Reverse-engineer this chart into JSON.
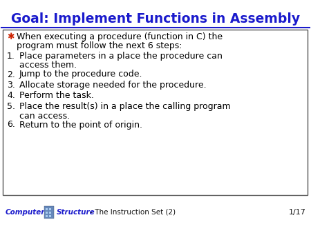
{
  "title": "Goal: Implement Functions in Assembly",
  "title_color": "#1a1acc",
  "title_fontsize": 13.5,
  "bg_color": "#ffffff",
  "box_bg": "#ffffff",
  "bullet_color": "#cc2200",
  "text_color": "#000000",
  "footer_computer": "Computer",
  "footer_structure": "Structure",
  "footer_rest": " - The Instruction Set (2)",
  "footer_color": "#1a1acc",
  "slide_number": "1/17",
  "item_fontsize": 9.0,
  "bullet_fontsize": 9.0,
  "bullet_line1": "When executing a procedure (function in C) the",
  "bullet_line2": "program must follow the next 6 steps:",
  "items": [
    {
      "num": "1.",
      "line1": "Place parameters in a place the procedure can",
      "line2": "access them."
    },
    {
      "num": "2.",
      "line1": "Jump to the procedure code.",
      "line2": null
    },
    {
      "num": "3.",
      "line1": "Allocate storage needed for the procedure.",
      "line2": null
    },
    {
      "num": "4.",
      "line1": "Perform the task.",
      "line2": null
    },
    {
      "num": "5.",
      "line1": "Place the result(s) in a place the calling program",
      "line2": "can access."
    },
    {
      "num": "6.",
      "line1": "Return to the point of origin.",
      "line2": null
    }
  ]
}
